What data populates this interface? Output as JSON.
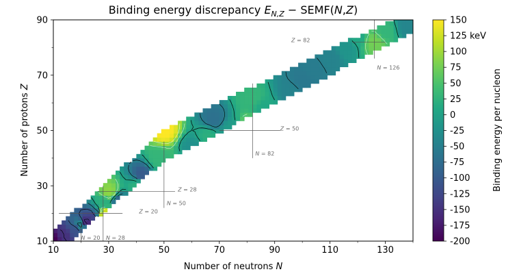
{
  "chart_data": {
    "type": "heatmap",
    "title": "Binding energy discrepancy E_{N,Z} − SEMF(N,Z)",
    "title_parts": {
      "prefix": "Binding energy discrepancy ",
      "e": "E",
      "e_sub": "N,Z",
      "rest": " − SEMF(",
      "n": "N",
      "comma": ",",
      "z": "Z",
      "close": ")"
    },
    "xlabel": {
      "text": "Number of neutrons ",
      "var": "N"
    },
    "ylabel": {
      "text": "Number of protons ",
      "var": "Z"
    },
    "colorbar_label": "Binding energy per nucleon",
    "xlim": [
      10,
      140
    ],
    "ylim": [
      10,
      90
    ],
    "xticks": [
      10,
      30,
      50,
      70,
      90,
      110,
      130
    ],
    "yticks": [
      10,
      30,
      50,
      70,
      90
    ],
    "colorbar": {
      "vmin": -200,
      "vmax": 150,
      "ticks": [
        "150",
        "125 keV",
        "100",
        "75",
        "50",
        "25",
        "0",
        "-25",
        "-50",
        "-75",
        "-100",
        "-125",
        "-150",
        "-175",
        "-200"
      ],
      "tick_values": [
        150,
        125,
        100,
        75,
        50,
        25,
        0,
        -25,
        -50,
        -75,
        -100,
        -125,
        -150,
        -175,
        -200
      ],
      "colormap": "viridis"
    },
    "magic_lines": [
      {
        "label": "Z = 82",
        "var": "Z",
        "num": "82",
        "value": 82,
        "axis": "Z",
        "from": 118,
        "to": 130,
        "label_at": [
          96,
          82
        ]
      },
      {
        "label": "Z = 50",
        "var": "Z",
        "num": "50",
        "value": 50,
        "axis": "Z",
        "from": 70,
        "to": 92,
        "label_at": [
          92,
          50
        ]
      },
      {
        "label": "Z = 28",
        "var": "Z",
        "num": "28",
        "value": 28,
        "axis": "Z",
        "from": 26,
        "to": 54,
        "label_at": [
          55,
          28
        ]
      },
      {
        "label": "Z = 20",
        "var": "Z",
        "num": "20",
        "value": 20,
        "axis": "Z",
        "from": 12,
        "to": 35,
        "label_at": [
          41,
          20
        ]
      },
      {
        "label": "N = 126",
        "var": "N",
        "num": "126",
        "value": 126,
        "axis": "N",
        "from": 76,
        "to": 90,
        "label_at": [
          127,
          72
        ]
      },
      {
        "label": "N = 82",
        "var": "N",
        "num": "82",
        "value": 82,
        "axis": "N",
        "from": 40,
        "to": 67,
        "label_at": [
          83,
          41
        ]
      },
      {
        "label": "N = 50",
        "var": "N",
        "num": "50",
        "value": 50,
        "axis": "N",
        "from": 22,
        "to": 46,
        "label_at": [
          51,
          23
        ]
      },
      {
        "label": "N = 28",
        "var": "N",
        "num": "28",
        "value": 28,
        "axis": "N",
        "from": 10,
        "to": 30,
        "label_at": [
          29,
          10.5
        ]
      },
      {
        "label": "N = 20",
        "var": "N",
        "num": "20",
        "value": 20,
        "axis": "N",
        "from": 10,
        "to": 16,
        "label_at": [
          20,
          10.5
        ]
      }
    ],
    "series": [
      {
        "values": [
          {
            "n": 10,
            "z": 10,
            "v": -200
          },
          {
            "n": 14,
            "z": 12,
            "v": -150
          },
          {
            "n": 18,
            "z": 14,
            "v": -110
          },
          {
            "n": 20,
            "z": 16,
            "v": -40
          },
          {
            "n": 22,
            "z": 17,
            "v": -160
          },
          {
            "n": 24,
            "z": 19,
            "v": -130
          },
          {
            "n": 26,
            "z": 20,
            "v": -60
          },
          {
            "n": 28,
            "z": 20,
            "v": 140
          },
          {
            "n": 28,
            "z": 24,
            "v": 20
          },
          {
            "n": 30,
            "z": 28,
            "v": 90
          },
          {
            "n": 34,
            "z": 24,
            "v": -90
          },
          {
            "n": 40,
            "z": 30,
            "v": 20
          },
          {
            "n": 42,
            "z": 34,
            "v": -100
          },
          {
            "n": 46,
            "z": 30,
            "v": 60
          },
          {
            "n": 48,
            "z": 40,
            "v": 30
          },
          {
            "n": 50,
            "z": 50,
            "v": 150
          },
          {
            "n": 50,
            "z": 28,
            "v": 100
          },
          {
            "n": 56,
            "z": 36,
            "v": 50
          },
          {
            "n": 60,
            "z": 44,
            "v": -25
          },
          {
            "n": 66,
            "z": 48,
            "v": 20
          },
          {
            "n": 68,
            "z": 54,
            "v": -70
          },
          {
            "n": 74,
            "z": 50,
            "v": -10
          },
          {
            "n": 82,
            "z": 50,
            "v": 130
          },
          {
            "n": 82,
            "z": 62,
            "v": 30
          },
          {
            "n": 86,
            "z": 58,
            "v": 10
          },
          {
            "n": 96,
            "z": 64,
            "v": -45
          },
          {
            "n": 100,
            "z": 68,
            "v": -60
          },
          {
            "n": 104,
            "z": 72,
            "v": -55
          },
          {
            "n": 110,
            "z": 76,
            "v": -45
          },
          {
            "n": 116,
            "z": 80,
            "v": -20
          },
          {
            "n": 120,
            "z": 84,
            "v": 10
          },
          {
            "n": 126,
            "z": 82,
            "v": 75
          },
          {
            "n": 130,
            "z": 86,
            "v": 30
          },
          {
            "n": 138,
            "z": 88,
            "v": -40
          }
        ]
      }
    ]
  }
}
